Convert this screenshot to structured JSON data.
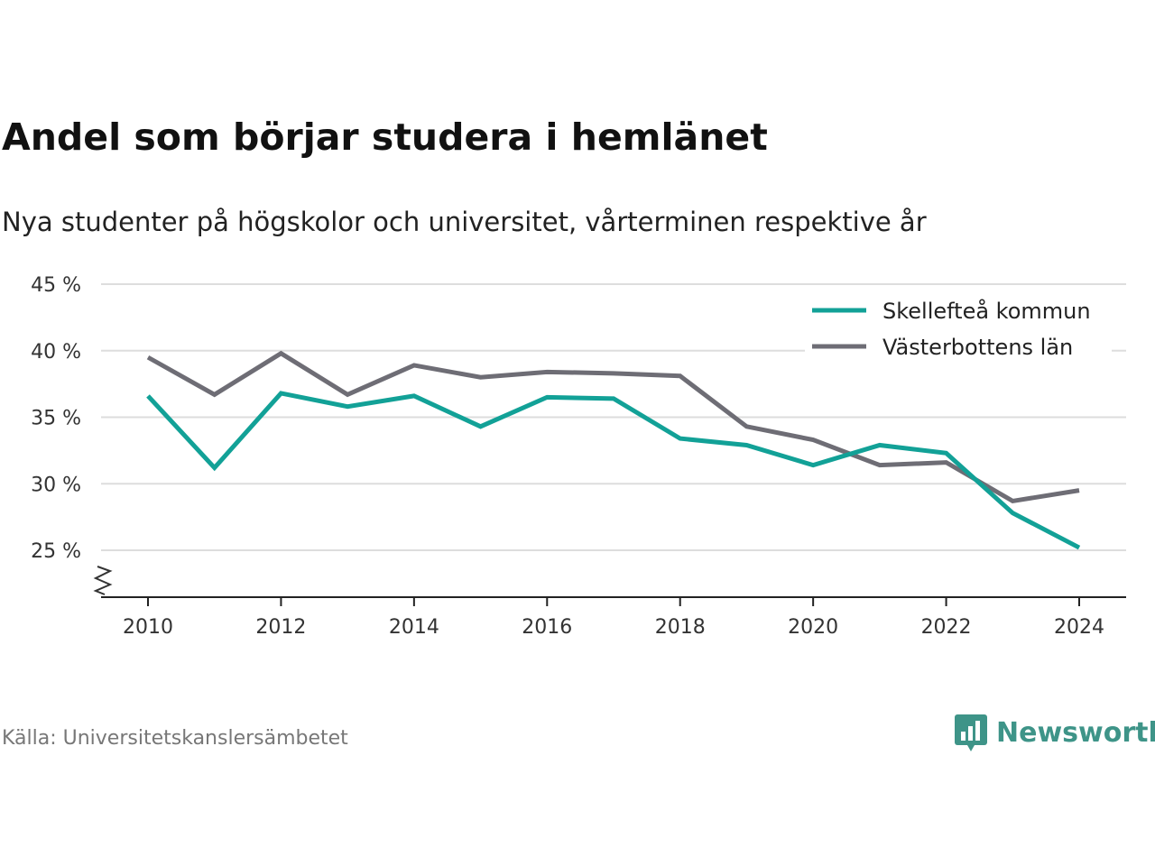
{
  "chart_data": {
    "type": "line",
    "title": "Andel som börjar studera i hemlänet",
    "subtitle": "Nya studenter på högskolor och universitet, vårterminen respektive år",
    "x": [
      2010,
      2011,
      2012,
      2013,
      2014,
      2015,
      2016,
      2017,
      2018,
      2019,
      2020,
      2021,
      2022,
      2023,
      2024
    ],
    "x_ticks": [
      2010,
      2012,
      2014,
      2016,
      2018,
      2020,
      2022,
      2024
    ],
    "y_ticks": [
      25,
      30,
      35,
      40,
      45
    ],
    "y_tick_labels": [
      "25 %",
      "30 %",
      "35 %",
      "40 %",
      "45 %"
    ],
    "ylim": [
      21.5,
      45
    ],
    "grid": true,
    "legend_position": "top-right",
    "series": [
      {
        "name": "Skellefteå kommun",
        "color": "#12a197",
        "values": [
          36.6,
          31.2,
          36.8,
          35.8,
          36.6,
          34.3,
          36.5,
          36.4,
          33.4,
          32.9,
          31.4,
          32.9,
          32.3,
          27.8,
          25.2
        ]
      },
      {
        "name": "Västerbottens län",
        "color": "#6e6d75",
        "values": [
          39.5,
          36.7,
          39.8,
          36.7,
          38.9,
          38.0,
          38.4,
          38.3,
          38.1,
          34.3,
          33.3,
          31.4,
          31.6,
          28.7,
          29.5
        ]
      }
    ]
  },
  "source": "Källa: Universitetskanslersämbetet",
  "logo": {
    "text": "Newsworthy",
    "color": "#3e9488"
  }
}
